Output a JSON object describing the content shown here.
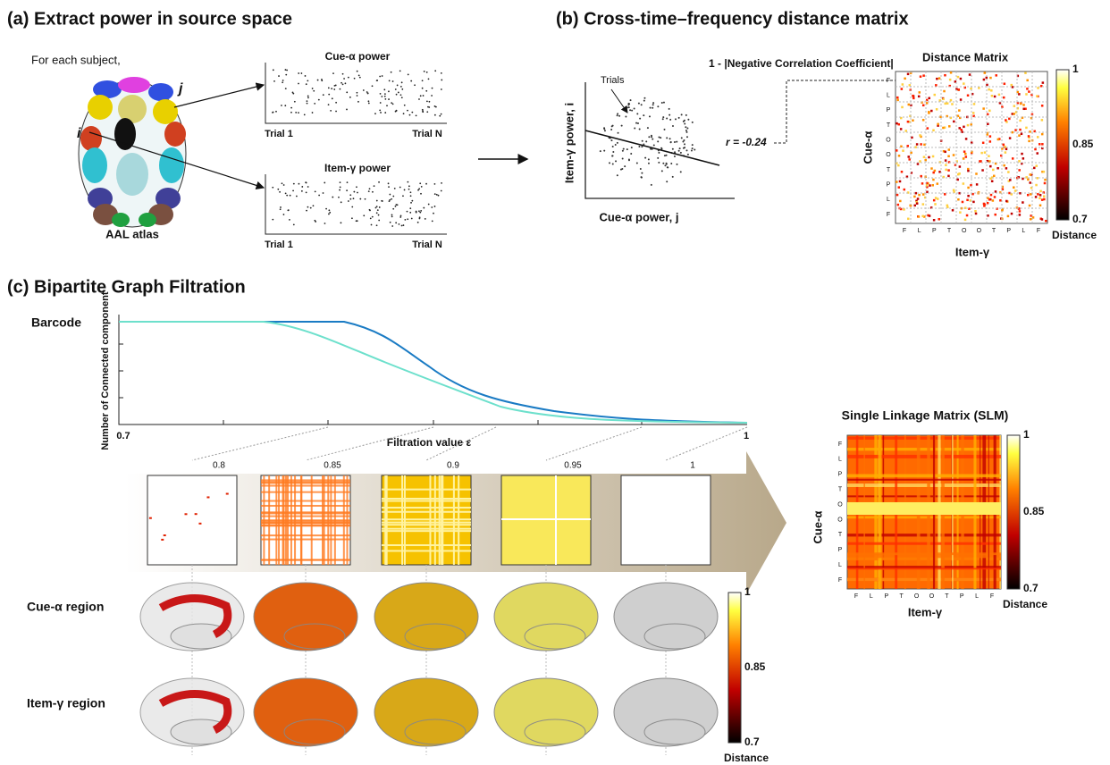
{
  "panel_a": {
    "title": "(a) Extract power in source space",
    "note": "For each subject,",
    "label_j": "j",
    "label_i": "i",
    "atlas": "AAL atlas",
    "plots": [
      {
        "title": "Cue-α power",
        "start": "Trial 1",
        "end": "Trial N"
      },
      {
        "title": "Item-γ power",
        "start": "Trial 1",
        "end": "Trial N"
      }
    ]
  },
  "panel_b": {
    "title": "(b) Cross-time–frequency distance matrix",
    "formula": "1 - |Negative Correlation Coefficient|",
    "trials": "Trials",
    "y_label": "Item-γ power, i",
    "x_label": "Cue-α power, j",
    "r": "r = -0.24",
    "matrix": {
      "title": "Distance Matrix",
      "y_label": "Cue-α",
      "x_label": "Item-γ",
      "regions": [
        "F",
        "L",
        "P",
        "T",
        "O",
        "O",
        "T",
        "P",
        "L",
        "F"
      ]
    },
    "colorbar": {
      "ticks": [
        "1",
        "0.85",
        "0.7"
      ],
      "label": "Distance"
    }
  },
  "panel_c": {
    "title": "(c) Bipartite Graph Filtration",
    "barcode": "Barcode",
    "y_label": "Number of Connected component",
    "x_ticks": [
      "0.7",
      "1"
    ],
    "x_label": "Filtration value ε",
    "thresholds": [
      "0.8",
      "0.85",
      "0.9",
      "0.95",
      "1"
    ],
    "rows": [
      "Cue-α region",
      "Item-γ region"
    ],
    "colorbar": {
      "ticks": [
        "1",
        "0.85",
        "0.7"
      ],
      "label": "Distance"
    },
    "slm": {
      "title": "Single Linkage Matrix (SLM)",
      "y_label": "Cue-α",
      "x_label": "Item-γ",
      "regions": [
        "F",
        "L",
        "P",
        "T",
        "O",
        "O",
        "T",
        "P",
        "L",
        "F"
      ]
    },
    "slm_colorbar": {
      "ticks": [
        "1",
        "0.85",
        "0.7"
      ],
      "label": "Distance"
    }
  }
}
